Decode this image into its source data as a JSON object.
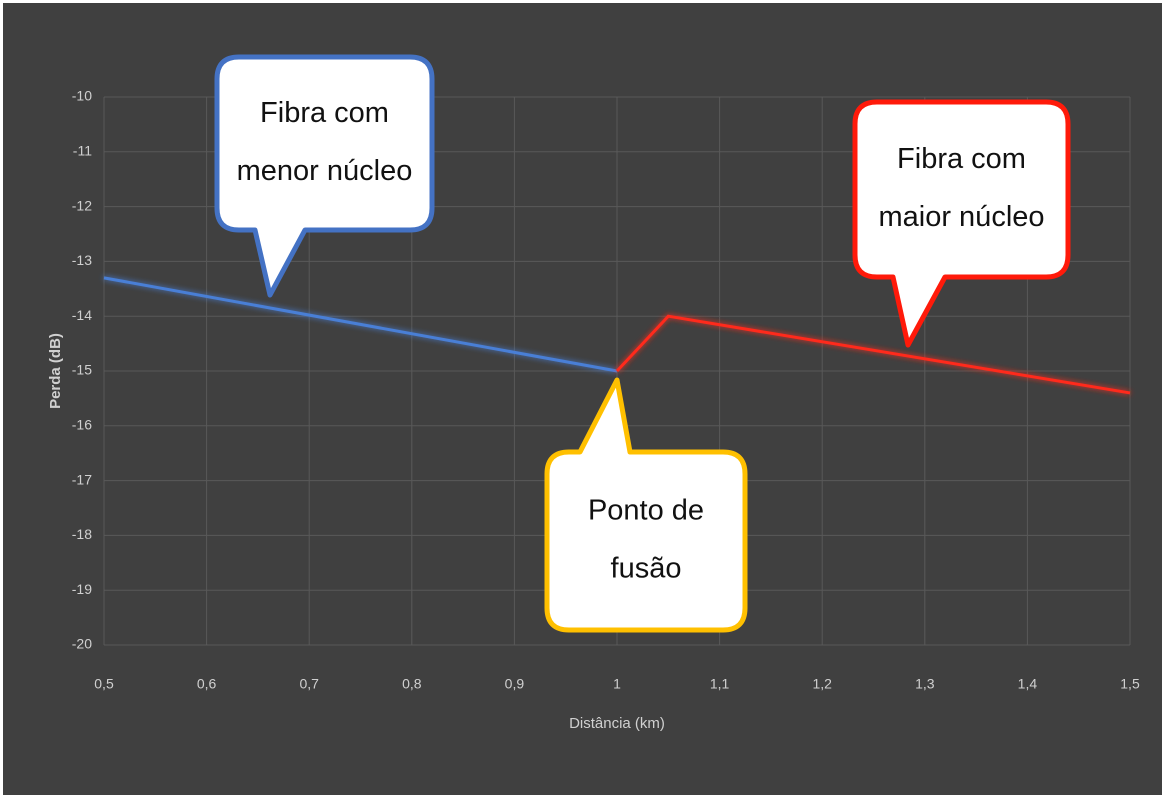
{
  "chart_data": {
    "type": "line",
    "xlabel": "Distância (km)",
    "ylabel": "Perda (dB)",
    "xlim": [
      0.5,
      1.5
    ],
    "ylim": [
      -20,
      -10
    ],
    "xticks": [
      {
        "value": 0.5,
        "label": "0,5"
      },
      {
        "value": 0.6,
        "label": "0,6"
      },
      {
        "value": 0.7,
        "label": "0,7"
      },
      {
        "value": 0.8,
        "label": "0,8"
      },
      {
        "value": 0.9,
        "label": "0,9"
      },
      1,
      {
        "value": 1.1,
        "label": "1,1"
      },
      {
        "value": 1.2,
        "label": "1,2"
      },
      {
        "value": 1.3,
        "label": "1,3"
      },
      {
        "value": 1.4,
        "label": "1,4"
      },
      {
        "value": 1.5,
        "label": "1,5"
      }
    ],
    "yticks": [
      -10,
      -11,
      -12,
      -13,
      -14,
      -15,
      -16,
      -17,
      -18,
      -19,
      -20
    ],
    "grid": true,
    "series": [
      {
        "color": "#4a7fd6",
        "x": [
          0.5,
          1
        ],
        "values": [
          -13.3,
          -15
        ]
      },
      {
        "color": "#ff2a1a",
        "x": [
          1,
          1.05,
          1.5
        ],
        "values": [
          -15,
          -14,
          -15.4
        ]
      }
    ],
    "annotations": [
      {
        "lines": [
          "Fibra com",
          "menor núcleo"
        ],
        "color": "#4472c4"
      },
      {
        "lines": [
          "Fibra com",
          "maior núcleo"
        ],
        "color": "#ff1a0a"
      },
      {
        "lines": [
          "Ponto de",
          "fusão"
        ],
        "color": "#ffc000"
      }
    ]
  }
}
